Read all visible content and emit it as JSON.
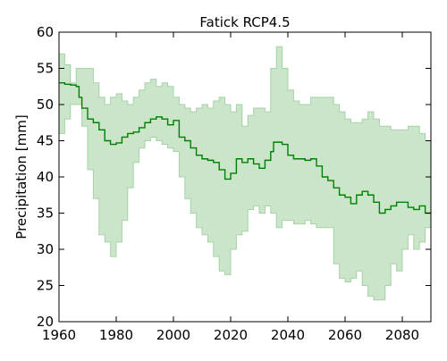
{
  "chart_data": {
    "type": "area",
    "title": "Fatick RCP4.5",
    "xlabel": "",
    "ylabel": "Precipitation [mm]",
    "xlim": [
      1960,
      2090
    ],
    "ylim": [
      20,
      60
    ],
    "xticks": [
      1960,
      1980,
      2000,
      2020,
      2040,
      2060,
      2080
    ],
    "yticks": [
      20,
      25,
      30,
      35,
      40,
      45,
      50,
      55,
      60
    ],
    "grid": false,
    "legend": "none",
    "colors": {
      "line": "#008000",
      "band_fill": "#b8dcb8",
      "band_edge": "#a6d3a6"
    },
    "series": [
      {
        "role": "median",
        "x": [
          1960,
          1962,
          1964,
          1966,
          1967,
          1968,
          1970,
          1972,
          1974,
          1976,
          1978,
          1980,
          1982,
          1984,
          1986,
          1988,
          1990,
          1992,
          1994,
          1996,
          1998,
          2000,
          2002,
          2004,
          2006,
          2008,
          2010,
          2012,
          2014,
          2016,
          2018,
          2020,
          2022,
          2024,
          2026,
          2028,
          2030,
          2032,
          2034,
          2035,
          2036,
          2038,
          2040,
          2042,
          2044,
          2046,
          2048,
          2050,
          2052,
          2054,
          2056,
          2058,
          2060,
          2062,
          2064,
          2066,
          2068,
          2070,
          2072,
          2074,
          2076,
          2078,
          2080,
          2082,
          2084,
          2086,
          2088,
          2090
        ],
        "y": [
          53,
          52.8,
          52.7,
          52.5,
          51,
          49.5,
          48,
          47.5,
          46.5,
          45,
          44.5,
          44.7,
          45.5,
          46,
          46.2,
          46.8,
          47.5,
          48,
          48.3,
          48,
          47.2,
          47.8,
          45.5,
          45,
          44,
          43,
          42.5,
          42.3,
          42,
          41,
          39.7,
          40.5,
          42.5,
          42,
          42.5,
          41.8,
          41.2,
          42.3,
          43.5,
          44.8,
          44.8,
          44.5,
          43,
          42.5,
          42.5,
          42.3,
          42.5,
          41.5,
          40,
          39.5,
          38.5,
          37.5,
          37.2,
          36.3,
          37.5,
          38,
          37.5,
          36.5,
          35,
          35.5,
          36,
          36.5,
          36.5,
          35.8,
          35.5,
          36,
          35,
          35
        ]
      },
      {
        "role": "range",
        "x": [
          1960,
          1962,
          1964,
          1966,
          1968,
          1970,
          1972,
          1974,
          1976,
          1978,
          1980,
          1982,
          1984,
          1986,
          1988,
          1990,
          1992,
          1994,
          1996,
          1998,
          2000,
          2002,
          2004,
          2006,
          2008,
          2010,
          2012,
          2014,
          2016,
          2018,
          2020,
          2022,
          2024,
          2026,
          2028,
          2030,
          2032,
          2034,
          2036,
          2038,
          2040,
          2042,
          2044,
          2046,
          2048,
          2050,
          2052,
          2054,
          2056,
          2058,
          2060,
          2062,
          2064,
          2066,
          2068,
          2070,
          2072,
          2074,
          2076,
          2078,
          2080,
          2082,
          2084,
          2086,
          2088,
          2090
        ],
        "upper": [
          57,
          55.5,
          53,
          55,
          55,
          55,
          53,
          51,
          50,
          51,
          51.5,
          50.5,
          50,
          51,
          52,
          53,
          53.5,
          52.5,
          53,
          52.5,
          51,
          50,
          49.5,
          49,
          49.5,
          50,
          49.5,
          50.5,
          51,
          50,
          49,
          50,
          47,
          48.5,
          49.5,
          49.5,
          49,
          55,
          58,
          55,
          52,
          50.5,
          50,
          50,
          51,
          51,
          51,
          51,
          50,
          49,
          48,
          47.5,
          47.5,
          48,
          49,
          48,
          47,
          47,
          46.5,
          46.5,
          46.5,
          47,
          47,
          46,
          45,
          44
        ],
        "lower": [
          46,
          48,
          50,
          50,
          47,
          41,
          37,
          32,
          31,
          29,
          31,
          34,
          38.5,
          42,
          44,
          45,
          45.5,
          45,
          44.5,
          44,
          43.5,
          40,
          37,
          35,
          33,
          32,
          31,
          29,
          27,
          26.5,
          30,
          32,
          32.5,
          35.5,
          36,
          35,
          36,
          35,
          33,
          34,
          34,
          33.5,
          33.5,
          34,
          33.5,
          33,
          33,
          33,
          28,
          26,
          25.5,
          26,
          27,
          25,
          23.5,
          23,
          23,
          25,
          28,
          27,
          30,
          32,
          30,
          31,
          33,
          34
        ]
      }
    ]
  }
}
